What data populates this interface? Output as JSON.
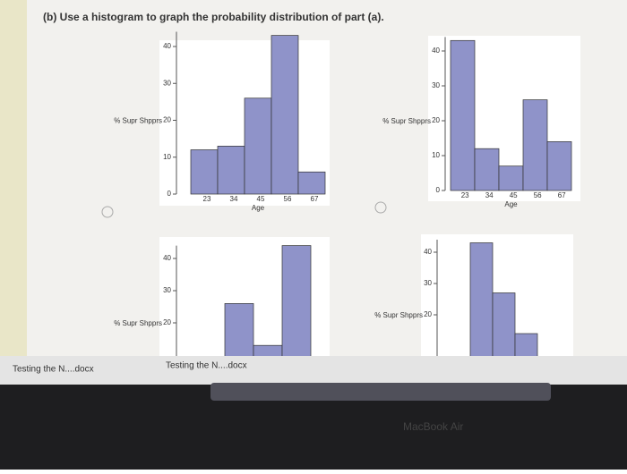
{
  "question": "(b) Use a histogram to graph the probability distribution of part (a).",
  "chart_data": [
    {
      "type": "bar",
      "y_label": "% Supr Shpprs",
      "x_label": "Age",
      "categories": [
        "23",
        "34",
        "45",
        "56",
        "67"
      ],
      "values": [
        12,
        13,
        26,
        43,
        6
      ],
      "color": "#8f93c9",
      "ylim": [
        0,
        44
      ],
      "yticks": [
        0,
        10,
        20,
        30,
        40
      ]
    },
    {
      "type": "bar",
      "y_label": "% Supr Shpprs",
      "x_label": "Age",
      "categories": [
        "23",
        "34",
        "45",
        "56",
        "67"
      ],
      "values": [
        43,
        12,
        7,
        26,
        14
      ],
      "color": "#8f93c9",
      "ylim": [
        0,
        44
      ],
      "yticks": [
        0,
        10,
        20,
        30,
        40
      ]
    },
    {
      "type": "bar",
      "y_label": "% Supr Shpprs",
      "values": [
        0,
        0,
        26,
        13,
        44
      ],
      "color": "#8f93c9",
      "ylim": [
        0,
        44
      ],
      "yticks": [
        20,
        30,
        40
      ]
    },
    {
      "type": "bar",
      "y_label": "% Supr Shpprs",
      "values": [
        43,
        27,
        14
      ],
      "color": "#8f93c9",
      "ylim": [
        0,
        44
      ],
      "yticks": [
        20,
        30,
        40
      ]
    }
  ],
  "downloads": [
    "Testing the N....docx",
    "Testing the N....docx"
  ],
  "device_label": "MacBook Air"
}
